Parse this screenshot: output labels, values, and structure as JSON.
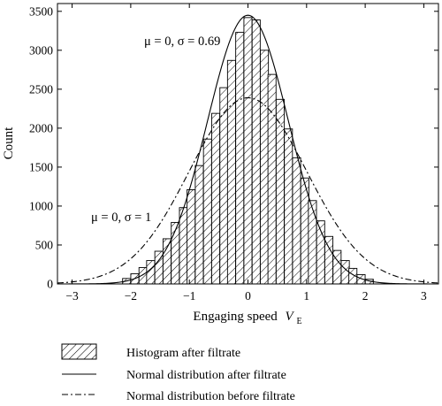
{
  "chart_data": {
    "type": "bar",
    "xlabel": "Engaging speed",
    "xlabel_var": "V",
    "xlabel_sub": "E",
    "ylabel": "Count",
    "xlim": [
      -3.25,
      3.25
    ],
    "ylim": [
      0,
      3600
    ],
    "x_ticks": [
      "−3",
      "−2",
      "−1",
      "0",
      "1",
      "2",
      "3"
    ],
    "y_ticks": [
      "0",
      "500",
      "1000",
      "1500",
      "2000",
      "2500",
      "3000",
      "3500"
    ],
    "bin_width": 0.138,
    "bins": [
      {
        "x": -2.07,
        "count": 70
      },
      {
        "x": -1.93,
        "count": 130
      },
      {
        "x": -1.79,
        "count": 210
      },
      {
        "x": -1.66,
        "count": 300
      },
      {
        "x": -1.52,
        "count": 420
      },
      {
        "x": -1.38,
        "count": 580
      },
      {
        "x": -1.24,
        "count": 790
      },
      {
        "x": -1.1,
        "count": 980
      },
      {
        "x": -0.97,
        "count": 1210
      },
      {
        "x": -0.83,
        "count": 1520
      },
      {
        "x": -0.69,
        "count": 1860
      },
      {
        "x": -0.55,
        "count": 2190
      },
      {
        "x": -0.41,
        "count": 2520
      },
      {
        "x": -0.28,
        "count": 2870
      },
      {
        "x": -0.14,
        "count": 3230
      },
      {
        "x": 0.0,
        "count": 3420
      },
      {
        "x": 0.14,
        "count": 3390
      },
      {
        "x": 0.28,
        "count": 3000
      },
      {
        "x": 0.41,
        "count": 2690
      },
      {
        "x": 0.55,
        "count": 2370
      },
      {
        "x": 0.69,
        "count": 1990
      },
      {
        "x": 0.83,
        "count": 1620
      },
      {
        "x": 0.97,
        "count": 1360
      },
      {
        "x": 1.1,
        "count": 1070
      },
      {
        "x": 1.24,
        "count": 810
      },
      {
        "x": 1.38,
        "count": 610
      },
      {
        "x": 1.52,
        "count": 430
      },
      {
        "x": 1.66,
        "count": 300
      },
      {
        "x": 1.79,
        "count": 200
      },
      {
        "x": 1.93,
        "count": 120
      },
      {
        "x": 2.07,
        "count": 60
      }
    ],
    "curves": [
      {
        "label": "μ = 0, σ = 0.69",
        "mu": 0,
        "sigma": 0.69,
        "peak": 3450,
        "style": "solid"
      },
      {
        "label": "μ = 0, σ = 1",
        "mu": 0,
        "sigma": 1,
        "peak": 2390,
        "style": "dashdot"
      }
    ],
    "legend": [
      {
        "label": "Histogram after filtrate",
        "kind": "hatched-box"
      },
      {
        "label": "Normal distribution after filtrate",
        "kind": "solid-line"
      },
      {
        "label": "Normal distribution before filtrate",
        "kind": "dashdot-line"
      }
    ],
    "legend_position": "bottom",
    "grid": false
  }
}
